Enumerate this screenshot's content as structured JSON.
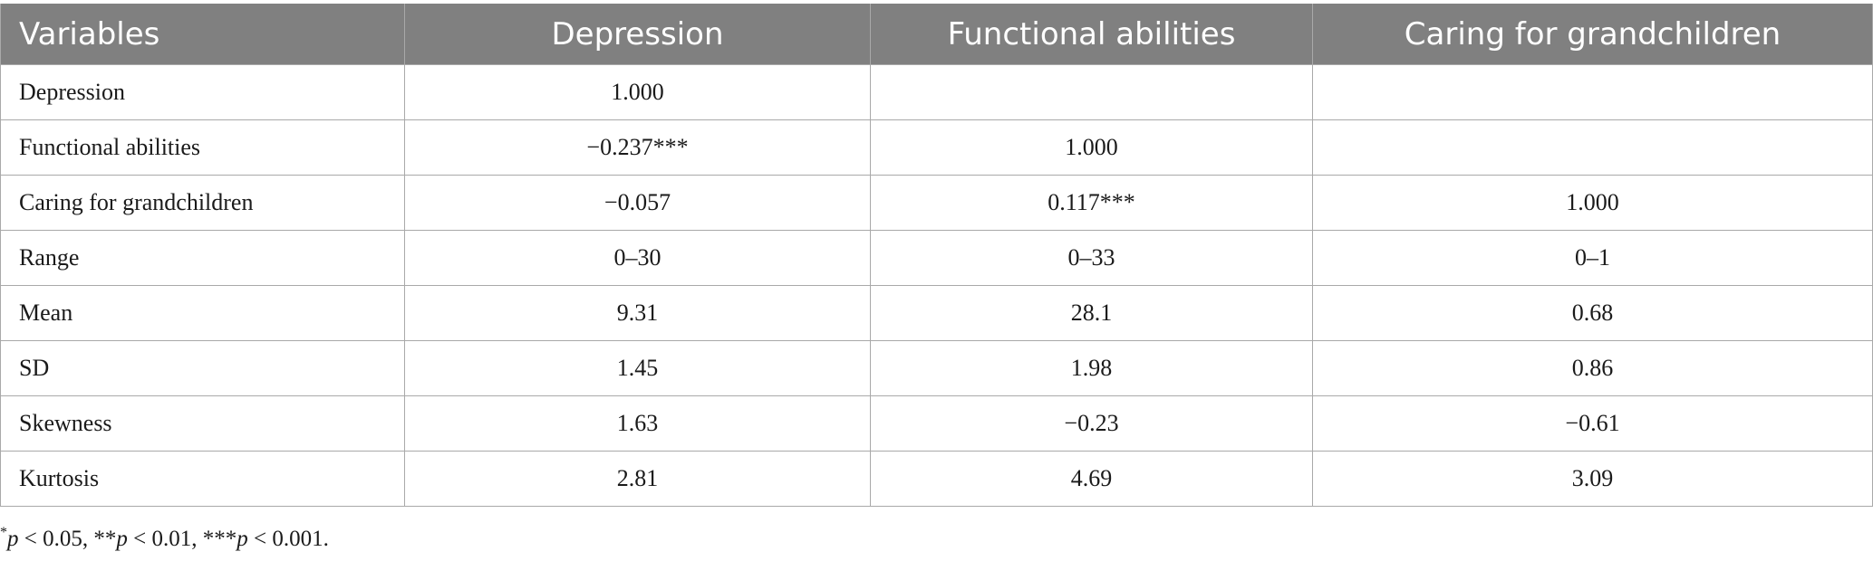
{
  "table": {
    "headers": [
      "Variables",
      "Depression",
      "Functional abilities",
      "Caring for grandchildren"
    ],
    "rows": [
      [
        "Depression",
        "1.000",
        "",
        ""
      ],
      [
        "Functional abilities",
        "−0.237***",
        "1.000",
        ""
      ],
      [
        "Caring for grandchildren",
        "−0.057",
        "0.117***",
        "1.000"
      ],
      [
        "Range",
        "0–30",
        "0–33",
        "0–1"
      ],
      [
        "Mean",
        "9.31",
        "28.1",
        "0.68"
      ],
      [
        "SD",
        "1.45",
        "1.98",
        "0.86"
      ],
      [
        "Skewness",
        "1.63",
        "−0.23",
        "−0.61"
      ],
      [
        "Kurtosis",
        "2.81",
        "4.69",
        "3.09"
      ]
    ]
  },
  "footnote": {
    "s1": "*",
    "p1": "p",
    "t1": " < 0.05, **",
    "p2": "p",
    "t2": " < 0.01, ***",
    "p3": "p",
    "t3": " < 0.001."
  },
  "colors": {
    "header_bg": "#808080",
    "header_text": "#ffffff",
    "border": "#a9a9a9"
  }
}
